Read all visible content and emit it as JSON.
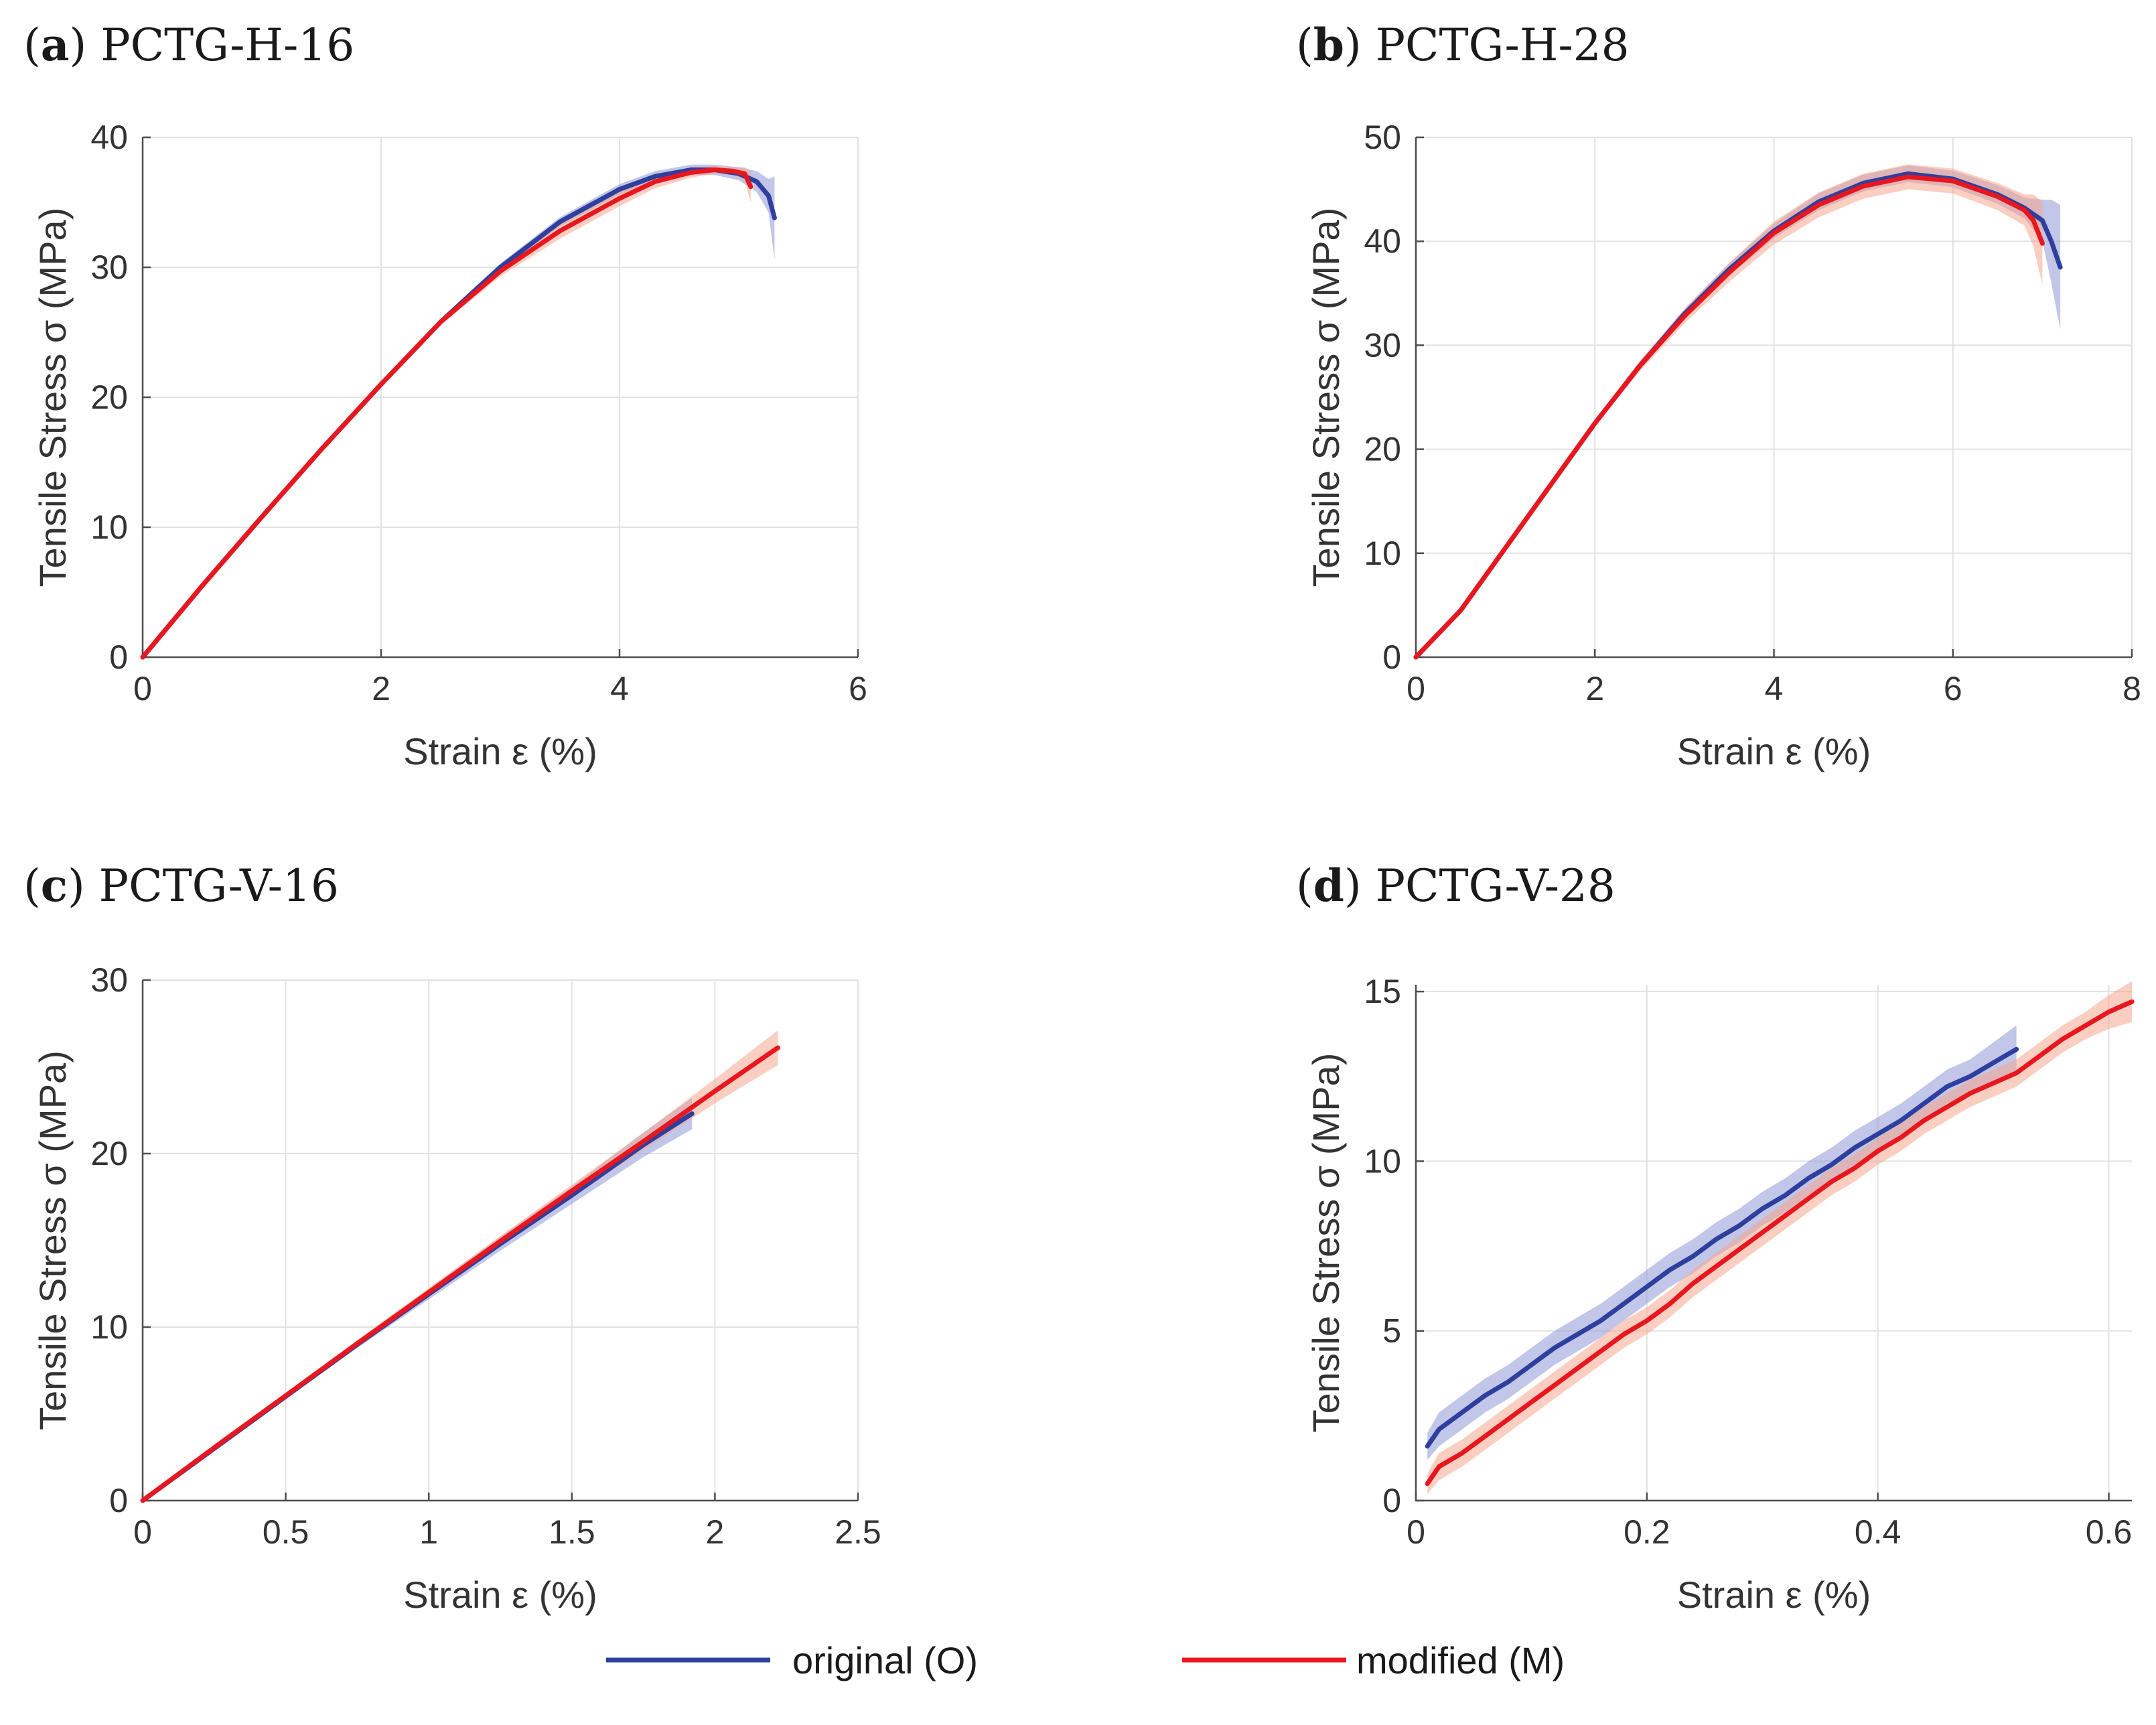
{
  "colors": {
    "original": "#2e3f9e",
    "modified": "#e8171f",
    "original_band": "#8f97d6",
    "modified_band": "#f5a58c"
  },
  "legend": {
    "original_label": "original (O)",
    "modified_label": "modified (M)"
  },
  "chart_data": [
    {
      "type": "line",
      "panel_label": "a",
      "title": "PCTG-H-16",
      "xlabel": "Strain ε (%)",
      "ylabel": "Tensile Stress σ (MPa)",
      "xlim": [
        0,
        6
      ],
      "ylim": [
        0,
        40
      ],
      "xticks": [
        0,
        2,
        4,
        6
      ],
      "yticks": [
        0,
        10,
        20,
        30,
        40
      ],
      "xtick_labels": [
        "0",
        "2",
        "4",
        "6"
      ],
      "ytick_labels": [
        "0",
        "10",
        "20",
        "30",
        "40"
      ],
      "grid": true,
      "series": [
        {
          "name": "original (O)",
          "x": [
            0,
            0.5,
            1,
            1.5,
            2,
            2.5,
            3,
            3.5,
            4,
            4.3,
            4.6,
            4.8,
            5.0,
            5.15,
            5.25,
            5.3
          ],
          "y": [
            0,
            5.5,
            10.8,
            16,
            21,
            25.8,
            30,
            33.5,
            36,
            37,
            37.5,
            37.5,
            37.2,
            36.6,
            35.5,
            33.8
          ],
          "band": [
            0,
            0.1,
            0.15,
            0.2,
            0.2,
            0.25,
            0.3,
            0.35,
            0.4,
            0.4,
            0.4,
            0.4,
            0.5,
            0.8,
            1.3,
            3.2
          ]
        },
        {
          "name": "modified (M)",
          "x": [
            0,
            0.5,
            1,
            1.5,
            2,
            2.5,
            3,
            3.5,
            4,
            4.3,
            4.6,
            4.8,
            4.95,
            5.05,
            5.1
          ],
          "y": [
            0,
            5.5,
            10.8,
            16,
            21,
            25.8,
            29.7,
            32.8,
            35.3,
            36.6,
            37.3,
            37.5,
            37.4,
            37.2,
            36.2
          ],
          "band": [
            0,
            0.1,
            0.15,
            0.2,
            0.2,
            0.25,
            0.4,
            0.6,
            0.6,
            0.5,
            0.4,
            0.3,
            0.3,
            0.5,
            1.2
          ]
        }
      ]
    },
    {
      "type": "line",
      "panel_label": "b",
      "title": "PCTG-H-28",
      "xlabel": "Strain ε (%)",
      "ylabel": "Tensile Stress σ (MPa)",
      "xlim": [
        0,
        8
      ],
      "ylim": [
        0,
        50
      ],
      "xticks": [
        0,
        2,
        4,
        6,
        8
      ],
      "yticks": [
        0,
        10,
        20,
        30,
        40,
        50
      ],
      "xtick_labels": [
        "0",
        "2",
        "4",
        "6",
        "8"
      ],
      "ytick_labels": [
        "0",
        "10",
        "20",
        "30",
        "40",
        "50"
      ],
      "grid": true,
      "series": [
        {
          "name": "original (O)",
          "x": [
            0,
            0.5,
            1,
            1.5,
            2,
            2.5,
            3,
            3.5,
            4,
            4.5,
            5,
            5.5,
            6,
            6.5,
            6.8,
            7.0,
            7.1,
            7.2
          ],
          "y": [
            0,
            4.5,
            10.5,
            16.5,
            22.5,
            28,
            33,
            37.3,
            41,
            43.8,
            45.6,
            46.5,
            46,
            44.5,
            43.2,
            42,
            40,
            37.5
          ],
          "band": [
            0,
            0.2,
            0.3,
            0.3,
            0.3,
            0.4,
            0.5,
            0.6,
            0.7,
            0.8,
            0.8,
            0.8,
            0.8,
            0.9,
            1.0,
            2.0,
            4.0,
            6.0
          ]
        },
        {
          "name": "modified (M)",
          "x": [
            0,
            0.5,
            1,
            1.5,
            2,
            2.5,
            3,
            3.5,
            4,
            4.5,
            5,
            5.5,
            6,
            6.5,
            6.8,
            6.9,
            7.0
          ],
          "y": [
            0,
            4.5,
            10.5,
            16.5,
            22.5,
            28,
            32.8,
            37,
            40.8,
            43.5,
            45.3,
            46.2,
            45.8,
            44.3,
            43,
            42,
            39.8
          ],
          "band": [
            0,
            0.2,
            0.3,
            0.3,
            0.3,
            0.5,
            0.7,
            0.9,
            1.1,
            1.2,
            1.2,
            1.2,
            1.2,
            1.3,
            1.5,
            2.5,
            4.0
          ]
        }
      ]
    },
    {
      "type": "line",
      "panel_label": "c",
      "title": "PCTG-V-16",
      "xlabel": "Strain ε (%)",
      "ylabel": "Tensile Stress σ (MPa)",
      "xlim": [
        0,
        2.5
      ],
      "ylim": [
        0,
        30
      ],
      "xticks": [
        0,
        0.5,
        1,
        1.5,
        2,
        2.5
      ],
      "yticks": [
        0,
        10,
        20,
        30
      ],
      "xtick_labels": [
        "0",
        "0.5",
        "1",
        "1.5",
        "2",
        "2.5"
      ],
      "ytick_labels": [
        "0",
        "10",
        "20",
        "30"
      ],
      "grid": true,
      "series": [
        {
          "name": "original (O)",
          "x": [
            0,
            0.25,
            0.5,
            0.75,
            1,
            1.25,
            1.5,
            1.75,
            1.92
          ],
          "y": [
            0,
            3,
            6,
            9,
            11.9,
            14.8,
            17.6,
            20.5,
            22.3
          ],
          "band": [
            0,
            0.1,
            0.15,
            0.2,
            0.3,
            0.4,
            0.5,
            0.7,
            0.9
          ]
        },
        {
          "name": "modified (M)",
          "x": [
            0,
            0.25,
            0.5,
            0.75,
            1,
            1.25,
            1.5,
            1.75,
            2,
            2.22
          ],
          "y": [
            0,
            3.05,
            6.05,
            9.05,
            12,
            14.95,
            17.85,
            20.7,
            23.6,
            26.1
          ],
          "band": [
            0,
            0.1,
            0.15,
            0.2,
            0.25,
            0.3,
            0.35,
            0.5,
            0.7,
            1.0
          ]
        }
      ]
    },
    {
      "type": "line",
      "panel_label": "d",
      "title": "PCTG-V-28",
      "xlabel": "Strain ε (%)",
      "ylabel": "Tensile Stress σ (MPa)",
      "xlim": [
        0,
        0.62
      ],
      "ylim": [
        0,
        15.2
      ],
      "xticks": [
        0,
        0.2,
        0.4,
        0.6
      ],
      "yticks": [
        0,
        5,
        10,
        15
      ],
      "xtick_labels": [
        "0",
        "0.2",
        "0.4",
        "0.6"
      ],
      "ytick_labels": [
        "0",
        "5",
        "10",
        "15"
      ],
      "grid": true,
      "series": [
        {
          "name": "original (O)",
          "x": [
            0.01,
            0.02,
            0.04,
            0.06,
            0.08,
            0.1,
            0.12,
            0.14,
            0.16,
            0.18,
            0.2,
            0.22,
            0.24,
            0.26,
            0.28,
            0.3,
            0.32,
            0.34,
            0.36,
            0.38,
            0.4,
            0.42,
            0.44,
            0.46,
            0.48,
            0.5,
            0.52
          ],
          "y": [
            1.6,
            2.1,
            2.6,
            3.1,
            3.5,
            4.0,
            4.5,
            4.9,
            5.3,
            5.8,
            6.3,
            6.8,
            7.2,
            7.7,
            8.1,
            8.6,
            9.0,
            9.5,
            9.9,
            10.4,
            10.8,
            11.2,
            11.7,
            12.2,
            12.5,
            12.9,
            13.3
          ],
          "band": [
            0.4,
            0.5,
            0.5,
            0.5,
            0.5,
            0.5,
            0.5,
            0.5,
            0.5,
            0.5,
            0.5,
            0.5,
            0.5,
            0.5,
            0.5,
            0.5,
            0.5,
            0.5,
            0.5,
            0.5,
            0.5,
            0.5,
            0.5,
            0.5,
            0.5,
            0.6,
            0.7
          ]
        },
        {
          "name": "modified (M)",
          "x": [
            0.01,
            0.02,
            0.04,
            0.06,
            0.08,
            0.1,
            0.12,
            0.14,
            0.16,
            0.18,
            0.2,
            0.22,
            0.24,
            0.26,
            0.28,
            0.3,
            0.32,
            0.34,
            0.36,
            0.38,
            0.4,
            0.42,
            0.44,
            0.46,
            0.48,
            0.5,
            0.52,
            0.54,
            0.56,
            0.58,
            0.6,
            0.62
          ],
          "y": [
            0.5,
            1.0,
            1.4,
            1.9,
            2.4,
            2.9,
            3.4,
            3.9,
            4.4,
            4.9,
            5.3,
            5.8,
            6.4,
            6.9,
            7.4,
            7.9,
            8.4,
            8.9,
            9.4,
            9.8,
            10.3,
            10.7,
            11.2,
            11.6,
            12.0,
            12.3,
            12.6,
            13.1,
            13.6,
            14.0,
            14.4,
            14.7
          ],
          "band": [
            0.3,
            0.4,
            0.4,
            0.4,
            0.4,
            0.4,
            0.4,
            0.4,
            0.4,
            0.4,
            0.4,
            0.4,
            0.4,
            0.4,
            0.4,
            0.4,
            0.4,
            0.4,
            0.4,
            0.4,
            0.4,
            0.4,
            0.4,
            0.4,
            0.4,
            0.4,
            0.4,
            0.4,
            0.4,
            0.4,
            0.5,
            0.6
          ]
        }
      ]
    }
  ]
}
